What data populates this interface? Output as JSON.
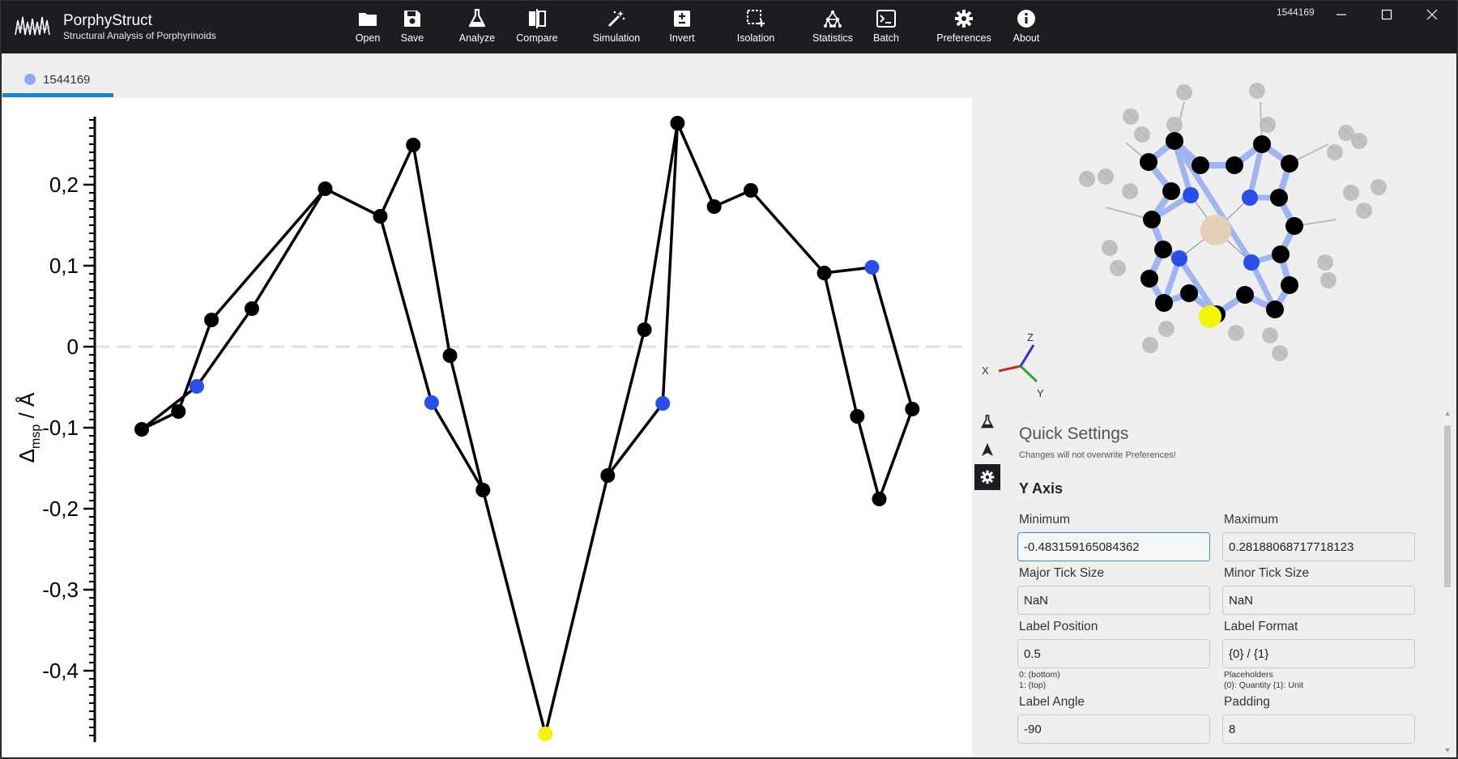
{
  "app": {
    "title": "PorphyStruct",
    "subtitle": "Structural Analysis of Porphyrinoids",
    "window_id": "1544169"
  },
  "toolbar": [
    {
      "label": "Open",
      "icon": "folder-icon"
    },
    {
      "label": "Save",
      "icon": "save-icon"
    },
    {
      "label": "Analyze",
      "icon": "flask-icon"
    },
    {
      "label": "Compare",
      "icon": "compare-icon"
    },
    {
      "label": "Simulation",
      "icon": "magic-wand-icon"
    },
    {
      "label": "Invert",
      "icon": "plus-minus-icon"
    },
    {
      "label": "Isolation",
      "icon": "selection-icon"
    },
    {
      "label": "Statistics",
      "icon": "graph-icon"
    },
    {
      "label": "Batch",
      "icon": "terminal-icon"
    },
    {
      "label": "Preferences",
      "icon": "gear-icon"
    },
    {
      "label": "About",
      "icon": "info-icon"
    }
  ],
  "tab": {
    "label": "1544169",
    "dot_color": "#8fa9f0"
  },
  "colors": {
    "accent": "#1b7fd3",
    "titlebar": "#1b1d21",
    "atom_blue": "#2a4ee8",
    "atom_yellow": "#f5f50a",
    "atom_black": "#000000"
  },
  "chart_data": {
    "type": "line",
    "ylabel_main": "Δ",
    "ylabel_sub": "msp",
    "ylabel_unit": "/ Å",
    "ylim": [
      -0.483159165084362,
      0.28188068717718123
    ],
    "yticks": [
      0.2,
      0.1,
      0,
      -0.1,
      -0.2,
      -0.3,
      -0.4
    ],
    "ytick_labels": [
      "0,2",
      "0,1",
      "0",
      "-0,1",
      "-0,2",
      "-0,3",
      "-0,4"
    ],
    "zero_line": true,
    "points": [
      {
        "x": 1.0,
        "y": -0.102,
        "c": "black"
      },
      {
        "x": 2.0,
        "y": -0.08,
        "c": "black"
      },
      {
        "x": 2.5,
        "y": -0.049,
        "c": "blue"
      },
      {
        "x": 2.9,
        "y": 0.033,
        "c": "black"
      },
      {
        "x": 4.0,
        "y": 0.047,
        "c": "black"
      },
      {
        "x": 6.0,
        "y": 0.195,
        "c": "black"
      },
      {
        "x": 7.5,
        "y": 0.161,
        "c": "black"
      },
      {
        "x": 8.4,
        "y": 0.249,
        "c": "black"
      },
      {
        "x": 8.9,
        "y": -0.069,
        "c": "blue"
      },
      {
        "x": 9.4,
        "y": -0.011,
        "c": "black"
      },
      {
        "x": 10.3,
        "y": -0.177,
        "c": "black"
      },
      {
        "x": 12.0,
        "y": -0.478,
        "c": "yellow"
      },
      {
        "x": 13.7,
        "y": -0.159,
        "c": "black"
      },
      {
        "x": 14.7,
        "y": 0.021,
        "c": "black"
      },
      {
        "x": 15.2,
        "y": -0.07,
        "c": "blue"
      },
      {
        "x": 15.6,
        "y": 0.276,
        "c": "black"
      },
      {
        "x": 16.6,
        "y": 0.173,
        "c": "black"
      },
      {
        "x": 17.6,
        "y": 0.193,
        "c": "black"
      },
      {
        "x": 19.6,
        "y": 0.091,
        "c": "black"
      },
      {
        "x": 20.5,
        "y": -0.086,
        "c": "black"
      },
      {
        "x": 21.1,
        "y": -0.188,
        "c": "black"
      },
      {
        "x": 22.0,
        "y": -0.077,
        "c": "black"
      },
      {
        "x": 20.9,
        "y": 0.098,
        "c": "blue"
      }
    ],
    "connections": [
      [
        0,
        1
      ],
      [
        1,
        3
      ],
      [
        3,
        5
      ],
      [
        5,
        6
      ],
      [
        6,
        8
      ],
      [
        8,
        10
      ],
      [
        10,
        11
      ],
      [
        11,
        12
      ],
      [
        12,
        14
      ],
      [
        14,
        15
      ],
      [
        15,
        16
      ],
      [
        16,
        17
      ],
      [
        17,
        18
      ],
      [
        18,
        19
      ],
      [
        19,
        20
      ],
      [
        20,
        21
      ],
      [
        21,
        22
      ],
      [
        22,
        18
      ],
      [
        0,
        2
      ],
      [
        2,
        4
      ],
      [
        4,
        5
      ],
      [
        6,
        7
      ],
      [
        7,
        9
      ],
      [
        9,
        10
      ],
      [
        12,
        13
      ],
      [
        13,
        15
      ]
    ]
  },
  "axes_gizmo": {
    "x": "X",
    "y": "Y",
    "z": "Z"
  },
  "side_icons": [
    "flask-icon",
    "arrow-icon",
    "gear-icon"
  ],
  "quick_settings": {
    "title": "Quick Settings",
    "note": "Changes will not overwrite Preferences!",
    "section": "Y Axis",
    "minimum_label": "Minimum",
    "minimum_value": "-0.483159165084362",
    "maximum_label": "Maximum",
    "maximum_value": "0.28188068717718123",
    "major_tick_label": "Major Tick Size",
    "major_tick_value": "NaN",
    "minor_tick_label": "Minor Tick Size",
    "minor_tick_value": "NaN",
    "label_position_label": "Label Position",
    "label_position_value": "0.5",
    "label_position_hint_1": "0: (bottom)",
    "label_position_hint_2": "1: (top)",
    "label_format_label": "Label Format",
    "label_format_value": "{0} / {1}",
    "label_format_hint_1": "Placeholders",
    "label_format_hint_2": "{0}: Quantity {1}: Unit",
    "label_angle_label": "Label Angle",
    "label_angle_value": "-90",
    "padding_label": "Padding",
    "padding_value": "8"
  }
}
